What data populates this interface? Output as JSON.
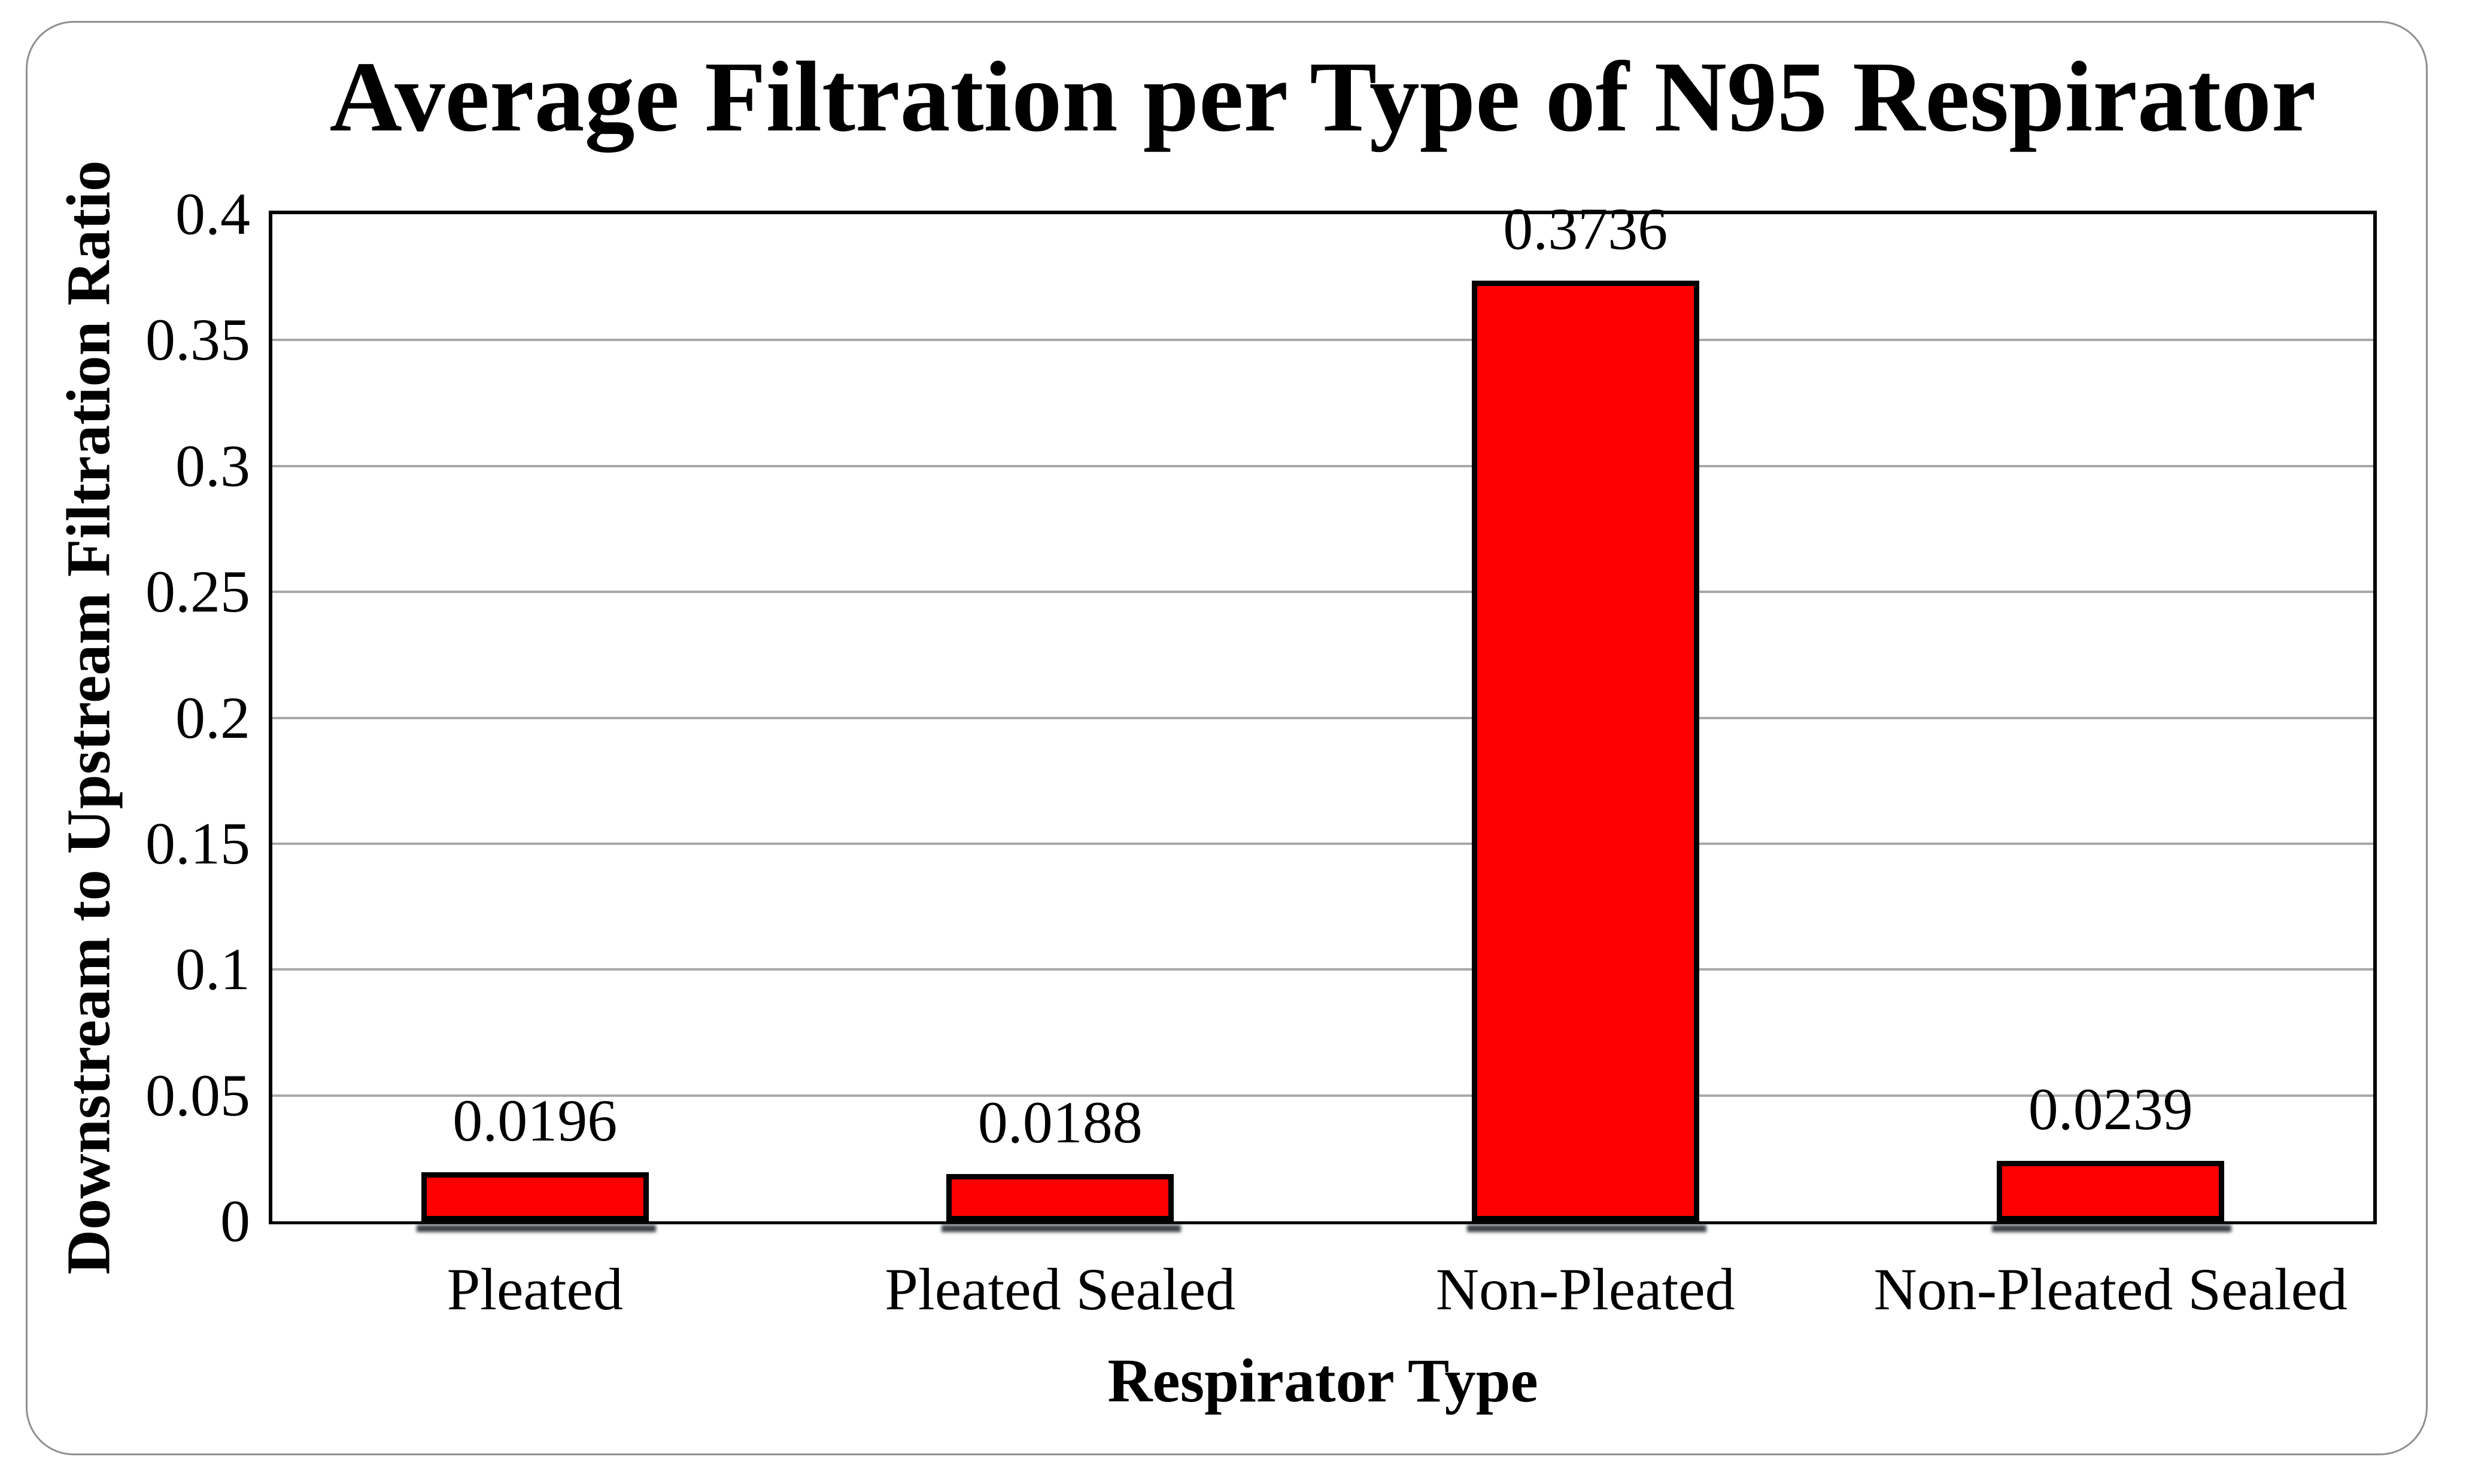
{
  "figure": {
    "background_color": "#FFFFFF",
    "frame_border_color": "#8F8F8F"
  },
  "chart_data": {
    "type": "bar",
    "title": "Average Filtration per Type of N95 Respirator",
    "xlabel": "Respirator Type",
    "ylabel": "Downstream to Upstream Filtration Ratio",
    "categories": [
      "Pleated",
      "Pleated Sealed",
      "Non-Pleated",
      "Non-Pleated Sealed"
    ],
    "values": [
      0.0196,
      0.0188,
      0.3736,
      0.0239
    ],
    "data_labels": [
      "0.0196",
      "0.0188",
      "0.3736",
      "0.0239"
    ],
    "ylim": [
      0,
      0.4
    ],
    "yticks": [
      0,
      0.05,
      0.1,
      0.15,
      0.2,
      0.25,
      0.3,
      0.35,
      0.4
    ],
    "ytick_labels": [
      "0",
      "0.05",
      "0.1",
      "0.15",
      "0.2",
      "0.25",
      "0.3",
      "0.35",
      "0.4"
    ],
    "grid": true,
    "legend": false,
    "bar_fill": "#FF0000",
    "bar_border": "#000000",
    "bar_shadow_color": "#3A4046",
    "gridline_color": "#A8A8A8",
    "axis_color": "#000000"
  }
}
